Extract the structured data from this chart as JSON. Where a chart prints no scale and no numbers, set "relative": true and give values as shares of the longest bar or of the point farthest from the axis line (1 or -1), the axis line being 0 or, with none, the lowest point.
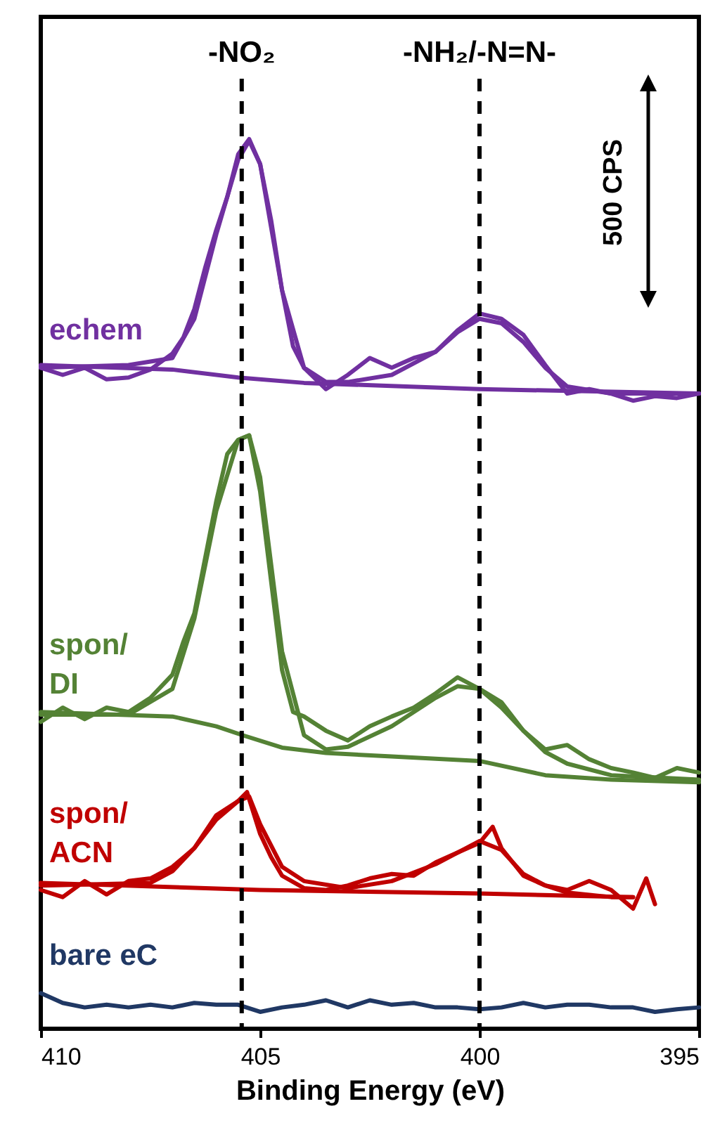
{
  "chart_data": {
    "type": "line",
    "relative": true,
    "xlabel": "Binding Energy (eV)",
    "xlim": [
      410,
      395
    ],
    "xticks": [
      410,
      405,
      400,
      395
    ],
    "grid": false,
    "line_style": "solid",
    "ref_lines": [
      {
        "axis": "x",
        "value": 405.42,
        "label": "-NO₂",
        "line_style": "dashed",
        "color": "#000000"
      },
      {
        "axis": "x",
        "value": 400,
        "label": "-NH₂/-N=N-",
        "line_style": "dashed",
        "color": "#000000"
      }
    ],
    "annotations": [
      "500 CPS"
    ],
    "series": [
      {
        "name": "echem",
        "color": "#7030a0",
        "x": [
          410,
          409.5,
          409,
          408.5,
          408,
          407.5,
          407,
          406.75,
          406.5,
          406.25,
          406,
          405.75,
          405.5,
          405.25,
          405,
          404.75,
          404.5,
          404.25,
          404,
          403.5,
          403,
          402.5,
          402,
          401.5,
          401,
          400.5,
          400,
          399.5,
          399,
          398.5,
          398,
          397.5,
          397,
          396.5,
          396,
          395.5,
          395
        ],
        "values": [
          0.743,
          0.735,
          0.743,
          0.73,
          0.732,
          0.741,
          0.759,
          0.777,
          0.809,
          0.856,
          0.898,
          0.935,
          0.983,
          1,
          0.972,
          0.909,
          0.83,
          0.767,
          0.743,
          0.719,
          0.735,
          0.754,
          0.743,
          0.754,
          0.761,
          0.785,
          0.804,
          0.798,
          0.78,
          0.746,
          0.714,
          0.719,
          0.714,
          0.706,
          0.711,
          0.709,
          0.714
        ]
      },
      {
        "type": "line",
        "color": "#7030a0",
        "x": [
          410,
          408,
          407,
          406.5,
          406,
          405.5,
          405.25,
          405,
          404.5,
          404,
          403.5,
          403,
          402,
          401,
          400.5,
          400,
          399.5,
          399,
          398.5,
          398,
          397,
          395
        ],
        "values": [
          0.743,
          0.746,
          0.754,
          0.798,
          0.893,
          0.977,
          0.998,
          0.972,
          0.83,
          0.743,
          0.727,
          0.727,
          0.735,
          0.761,
          0.783,
          0.798,
          0.793,
          0.772,
          0.743,
          0.722,
          0.714,
          0.714
        ]
      },
      {
        "type": "line",
        "color": "#7030a0",
        "x": [
          410,
          407,
          405.5,
          404,
          400,
          395
        ],
        "values": [
          0.746,
          0.741,
          0.732,
          0.726,
          0.719,
          0.714
        ]
      },
      {
        "name": "spon/DI",
        "color": "#548235",
        "x": [
          410,
          409.5,
          409,
          408.5,
          408,
          407.5,
          407,
          406.75,
          406.5,
          406.25,
          406,
          405.75,
          405.5,
          405.25,
          405,
          404.75,
          404.5,
          404.25,
          404,
          403.5,
          403,
          402.5,
          402,
          401.5,
          401,
          400.5,
          400,
          399.5,
          399,
          398.5,
          398,
          397.5,
          397,
          396.5,
          396,
          395.5,
          395
        ],
        "values": [
          0.345,
          0.361,
          0.348,
          0.361,
          0.356,
          0.372,
          0.398,
          0.435,
          0.467,
          0.53,
          0.593,
          0.646,
          0.662,
          0.667,
          0.604,
          0.503,
          0.403,
          0.356,
          0.351,
          0.335,
          0.324,
          0.34,
          0.351,
          0.361,
          0.377,
          0.395,
          0.382,
          0.367,
          0.335,
          0.314,
          0.319,
          0.303,
          0.293,
          0.288,
          0.282,
          0.293,
          0.288
        ]
      },
      {
        "type": "line",
        "color": "#548235",
        "x": [
          410,
          408,
          407,
          406.5,
          406,
          405.5,
          405.25,
          405,
          404.5,
          404,
          403.5,
          403,
          402,
          401,
          400.5,
          400,
          399.5,
          399,
          398.5,
          398,
          397,
          395
        ],
        "values": [
          0.353,
          0.353,
          0.382,
          0.461,
          0.582,
          0.662,
          0.667,
          0.62,
          0.424,
          0.33,
          0.314,
          0.317,
          0.34,
          0.372,
          0.385,
          0.382,
          0.361,
          0.335,
          0.311,
          0.298,
          0.285,
          0.28
        ]
      },
      {
        "type": "line",
        "color": "#548235",
        "x": [
          410,
          407,
          406,
          405.4,
          404.5,
          403.5,
          402,
          400,
          398.5,
          397,
          395
        ],
        "values": [
          0.356,
          0.351,
          0.34,
          0.33,
          0.316,
          0.31,
          0.306,
          0.301,
          0.285,
          0.28,
          0.277
        ]
      },
      {
        "name": "spon/ACN",
        "color": "#c00000",
        "x": [
          410,
          409.5,
          409,
          408.5,
          408,
          407.5,
          407,
          406.5,
          406,
          405.5,
          405.3,
          405,
          404.75,
          404.5,
          404,
          403.5,
          403,
          402.5,
          402,
          401.5,
          401,
          400.5,
          400,
          399.7,
          399.5,
          399,
          398.5,
          398,
          397.5,
          397,
          396.5,
          396.2,
          396
        ],
        "values": [
          0.156,
          0.148,
          0.166,
          0.151,
          0.166,
          0.169,
          0.182,
          0.203,
          0.24,
          0.256,
          0.266,
          0.219,
          0.193,
          0.172,
          0.158,
          0.156,
          0.161,
          0.169,
          0.174,
          0.172,
          0.187,
          0.198,
          0.209,
          0.227,
          0.203,
          0.172,
          0.161,
          0.156,
          0.166,
          0.156,
          0.135,
          0.169,
          0.14
        ]
      },
      {
        "type": "line",
        "color": "#c00000",
        "x": [
          410,
          407.5,
          407,
          406.5,
          406,
          405.5,
          405.25,
          405,
          404.5,
          404,
          403,
          402,
          401,
          400.5,
          400,
          399.5,
          399,
          398.5,
          398,
          397,
          396.5
        ],
        "values": [
          0.161,
          0.164,
          0.177,
          0.203,
          0.235,
          0.256,
          0.261,
          0.23,
          0.182,
          0.166,
          0.158,
          0.166,
          0.185,
          0.198,
          0.211,
          0.201,
          0.174,
          0.161,
          0.153,
          0.148,
          0.148
        ]
      },
      {
        "type": "line",
        "color": "#c00000",
        "x": [
          410,
          405,
          400,
          396.5
        ],
        "values": [
          0.164,
          0.156,
          0.152,
          0.148
        ]
      },
      {
        "name": "bare eC",
        "color": "#203864",
        "x": [
          410,
          409.5,
          409,
          408.5,
          408,
          407.5,
          407,
          406.5,
          406,
          405.5,
          405,
          404.5,
          404,
          403.5,
          403,
          402.5,
          402,
          401.5,
          401,
          400.5,
          400,
          399.5,
          399,
          398.5,
          398,
          397.5,
          397,
          396.5,
          396,
          395.5,
          395
        ],
        "values": [
          0.04,
          0.029,
          0.024,
          0.027,
          0.024,
          0.027,
          0.024,
          0.029,
          0.027,
          0.027,
          0.019,
          0.024,
          0.027,
          0.032,
          0.024,
          0.032,
          0.027,
          0.029,
          0.024,
          0.024,
          0.022,
          0.024,
          0.029,
          0.024,
          0.027,
          0.027,
          0.024,
          0.024,
          0.019,
          0.022,
          0.024
        ]
      }
    ]
  }
}
